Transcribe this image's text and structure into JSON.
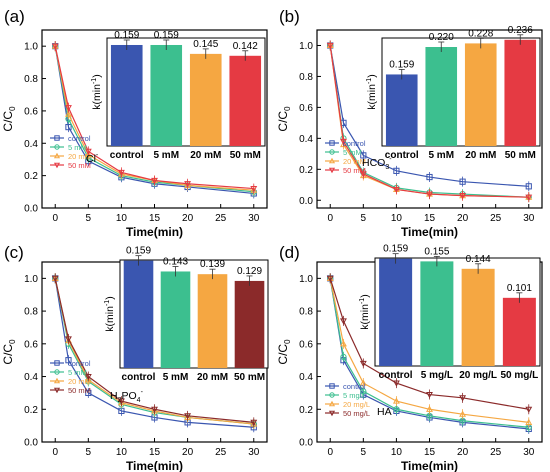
{
  "chart_data": [
    {
      "panel": "(a)",
      "type": "line",
      "ylabel": "C/C",
      "ylabel_sub": "0",
      "xlabel": "Time(min)",
      "xlim": [
        -2,
        32
      ],
      "ylim": [
        0,
        1.1
      ],
      "xticks": [
        "0",
        "5",
        "10",
        "15",
        "20",
        "25",
        "30"
      ],
      "yticks": [
        "0.0",
        "0.2",
        "0.4",
        "0.6",
        "0.8",
        "1.0"
      ],
      "ion_label": "Cl",
      "ion_label_sup": "-",
      "x": [
        0,
        2,
        5,
        10,
        15,
        20,
        30
      ],
      "series": [
        {
          "name": "control",
          "color": "#3a56b0",
          "marker": "square",
          "values": [
            1.0,
            0.5,
            0.29,
            0.19,
            0.15,
            0.13,
            0.09
          ]
        },
        {
          "name": "5 mM",
          "color": "#3cbf8f",
          "marker": "circle",
          "values": [
            1.0,
            0.55,
            0.31,
            0.2,
            0.16,
            0.14,
            0.1
          ]
        },
        {
          "name": "20 mM",
          "color": "#f5a742",
          "marker": "triangle",
          "values": [
            1.0,
            0.58,
            0.33,
            0.21,
            0.17,
            0.14,
            0.11
          ]
        },
        {
          "name": "50 mM",
          "color": "#e53a43",
          "marker": "triangle-down",
          "values": [
            1.0,
            0.62,
            0.35,
            0.22,
            0.17,
            0.15,
            0.12
          ]
        }
      ],
      "inset": {
        "type": "bar",
        "ylabel": "k(min",
        "ylabel_sup": "-1",
        "ylabel_end": ")",
        "categories": [
          "control",
          "5 mM",
          "20 mM",
          "50 mM"
        ],
        "values": [
          0.159,
          0.159,
          0.145,
          0.142
        ],
        "labels": [
          "0.159",
          "0.159",
          "0.145",
          "0.142"
        ],
        "colors": [
          "#3a56b0",
          "#3cbf8f",
          "#f5a742",
          "#e53a43"
        ],
        "ylim": [
          0,
          0.17
        ]
      }
    },
    {
      "panel": "(b)",
      "type": "line",
      "ylabel": "C/C",
      "ylabel_sub": "0",
      "xlabel": "Time(min)",
      "xlim": [
        -2,
        32
      ],
      "ylim": [
        -0.05,
        1.1
      ],
      "xticks": [
        "0",
        "5",
        "10",
        "15",
        "20",
        "25",
        "30"
      ],
      "yticks": [
        "0.0",
        "0.2",
        "0.4",
        "0.6",
        "0.8",
        "1.0"
      ],
      "ion_label": "HCO",
      "ion_label_sub": "3",
      "ion_label_sup": "-",
      "x": [
        0,
        2,
        5,
        10,
        15,
        20,
        30
      ],
      "series": [
        {
          "name": "control",
          "color": "#3a56b0",
          "marker": "square",
          "values": [
            1.0,
            0.5,
            0.29,
            0.19,
            0.15,
            0.12,
            0.09
          ]
        },
        {
          "name": "5 mM",
          "color": "#3cbf8f",
          "marker": "circle",
          "values": [
            1.0,
            0.4,
            0.18,
            0.08,
            0.05,
            0.04,
            0.02
          ]
        },
        {
          "name": "20 mM",
          "color": "#f5a742",
          "marker": "triangle",
          "values": [
            1.0,
            0.36,
            0.16,
            0.07,
            0.04,
            0.03,
            0.02
          ]
        },
        {
          "name": "50 mM",
          "color": "#e53a43",
          "marker": "triangle-down",
          "values": [
            1.0,
            0.38,
            0.17,
            0.07,
            0.04,
            0.03,
            0.02
          ]
        }
      ],
      "inset": {
        "type": "bar",
        "ylabel": "k(min",
        "ylabel_sup": "-1",
        "ylabel_end": ")",
        "categories": [
          "control",
          "5 mM",
          "20 mM",
          "50 mM"
        ],
        "values": [
          0.159,
          0.22,
          0.228,
          0.236
        ],
        "labels": [
          "0.159",
          "0.220",
          "0.228",
          "0.236"
        ],
        "colors": [
          "#3a56b0",
          "#3cbf8f",
          "#f5a742",
          "#e53a43"
        ],
        "ylim": [
          0,
          0.24
        ]
      }
    },
    {
      "panel": "(c)",
      "type": "line",
      "ylabel": "C/C",
      "ylabel_sub": "0",
      "xlabel": "Time(min)",
      "xlim": [
        -2,
        32
      ],
      "ylim": [
        0,
        1.1
      ],
      "xticks": [
        "0",
        "5",
        "10",
        "15",
        "20",
        "25",
        "30"
      ],
      "yticks": [
        "0.0",
        "0.2",
        "0.4",
        "0.6",
        "0.8",
        "1.0"
      ],
      "ion_label": "H",
      "ion_label_sub": "2",
      "ion_label_mid": "PO",
      "ion_label_sub2": "4",
      "ion_label_sup": "-",
      "x": [
        0,
        2,
        5,
        10,
        15,
        20,
        30
      ],
      "series": [
        {
          "name": "control",
          "color": "#3a56b0",
          "marker": "square",
          "values": [
            1.0,
            0.5,
            0.3,
            0.19,
            0.15,
            0.12,
            0.09
          ]
        },
        {
          "name": "5 mM",
          "color": "#3cbf8f",
          "marker": "circle",
          "values": [
            1.0,
            0.6,
            0.37,
            0.23,
            0.18,
            0.15,
            0.11
          ]
        },
        {
          "name": "20 mM",
          "color": "#f5a742",
          "marker": "triangle",
          "values": [
            1.0,
            0.62,
            0.38,
            0.24,
            0.19,
            0.15,
            0.11
          ]
        },
        {
          "name": "50 mM",
          "color": "#8b2a2a",
          "marker": "triangle-down",
          "values": [
            1.0,
            0.63,
            0.4,
            0.25,
            0.2,
            0.16,
            0.12
          ]
        }
      ],
      "inset": {
        "type": "bar",
        "ylabel": "k(min",
        "ylabel_sup": "-1",
        "ylabel_end": ")",
        "categories": [
          "control",
          "5 mM",
          "20 mM",
          "50 mM"
        ],
        "values": [
          0.159,
          0.143,
          0.139,
          0.129
        ],
        "labels": [
          "0.159",
          "0.143",
          "0.139",
          "0.129"
        ],
        "colors": [
          "#3a56b0",
          "#3cbf8f",
          "#f5a742",
          "#8b2a2a"
        ],
        "ylim": [
          0,
          0.16
        ]
      }
    },
    {
      "panel": "(d)",
      "type": "line",
      "ylabel": "C/C",
      "ylabel_sub": "0",
      "xlabel": "Time(min)",
      "xlim": [
        -2,
        32
      ],
      "ylim": [
        0,
        1.1
      ],
      "xticks": [
        "0",
        "5",
        "10",
        "15",
        "20",
        "25",
        "30"
      ],
      "yticks": [
        "0.0",
        "0.2",
        "0.4",
        "0.6",
        "0.8",
        "1.0"
      ],
      "ion_label": "HA",
      "x": [
        0,
        2,
        5,
        10,
        15,
        20,
        30
      ],
      "series": [
        {
          "name": "control",
          "color": "#3a56b0",
          "marker": "square",
          "values": [
            1.0,
            0.5,
            0.29,
            0.19,
            0.15,
            0.12,
            0.08
          ]
        },
        {
          "name": "5 mg/L",
          "color": "#3cbf8f",
          "marker": "circle",
          "values": [
            1.0,
            0.52,
            0.31,
            0.2,
            0.16,
            0.13,
            0.09
          ]
        },
        {
          "name": "20 mg/L",
          "color": "#f5a742",
          "marker": "triangle",
          "values": [
            1.0,
            0.6,
            0.36,
            0.25,
            0.2,
            0.17,
            0.12
          ]
        },
        {
          "name": "50 mg/L",
          "color": "#8b2a2a",
          "marker": "triangle-down",
          "values": [
            1.0,
            0.74,
            0.48,
            0.36,
            0.29,
            0.27,
            0.2
          ]
        }
      ],
      "inset": {
        "type": "bar",
        "ylabel": "k(min",
        "ylabel_sup": "-1",
        "ylabel_end": ")",
        "categories": [
          "control",
          "5 mg/L",
          "20 mg/L",
          "50 mg/L"
        ],
        "values": [
          0.159,
          0.155,
          0.144,
          0.101
        ],
        "labels": [
          "0.159",
          "0.155",
          "0.144",
          "0.101"
        ],
        "colors": [
          "#3a56b0",
          "#3cbf8f",
          "#f5a742",
          "#e53a43"
        ],
        "ylim": [
          0,
          0.16
        ]
      }
    }
  ]
}
